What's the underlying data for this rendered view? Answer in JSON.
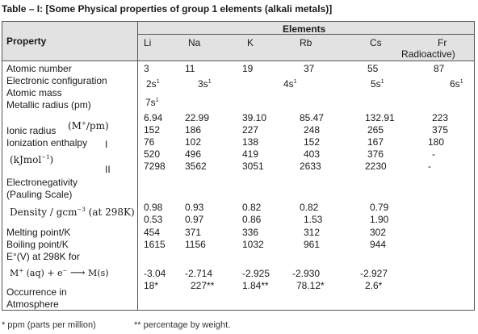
{
  "title": "Table – I: [Some Physical properties of group 1 elements (alkali metals)]",
  "header": {
    "elements_label": "Elements",
    "property_label": "Property",
    "symbols": [
      "Li",
      "Na",
      "K",
      "Rb",
      "Cs",
      "Fr"
    ],
    "fr_note": "Radioactive)"
  },
  "labels": {
    "atomic_number": "Atomic number",
    "electronic_configuration": "Electronic configuration",
    "atomic_mass": "Atomic mass",
    "metallic_radius": "Metallic radius (pm)",
    "ionic_radius": "Ionic radius",
    "ionic_radius_unit": "(M+/pm)",
    "ionization_enthalpy": "Ionization enthalpy",
    "ie_unit": "(kJmol-1)",
    "ie_first": "I",
    "ie_second": "II",
    "electronegativity_1": "Electronegativity",
    "electronegativity_2": "(Pauling Scale)",
    "density": "Density / gcm-3 (at 298K)",
    "melting_point": "Melting point/K",
    "boiling_point": "Boiling point/K",
    "e_potential": "E°(V) at 298K for",
    "e_reaction": "M+ (aq) + e- ⟶ M(s)",
    "occurrence_1": "Occurrence in",
    "occurrence_2": "Atmosphere"
  },
  "values": {
    "atomic_number": [
      "3",
      "11",
      "19",
      "37",
      "55",
      "87"
    ],
    "electronic_configuration": [
      "2s1",
      "3s1",
      "4s1",
      "5s1",
      "6s1"
    ],
    "li_config_extra": "7s1",
    "atomic_mass": [
      "6.94",
      "22.99",
      "39.10",
      "85.47",
      "132.91",
      "223"
    ],
    "metallic_radius": [
      "152",
      "186",
      "227",
      "248",
      "265",
      "375"
    ],
    "ionic_radius": [
      "76",
      "102",
      "138",
      "152",
      "167",
      "180"
    ],
    "ie_1": [
      "520",
      "496",
      "419",
      "403",
      "376",
      "-"
    ],
    "ie_2": [
      "7298",
      "3562",
      "3051",
      "2633",
      "2230",
      "-"
    ],
    "electronegativity": [
      "0.98",
      "0.93",
      "0.82",
      "0.82",
      "0.79"
    ],
    "density": [
      "0.53",
      "0.97",
      "0.86",
      "1.53",
      "1.90"
    ],
    "melting_point": [
      "454",
      "371",
      "336",
      "312",
      "302"
    ],
    "boiling_point": [
      "1615",
      "1156",
      "1032",
      "961",
      "944"
    ],
    "e_potential": [
      "-3.04",
      "-2.714",
      "-2.925",
      "-2.930",
      "-2.927"
    ],
    "occurrence": [
      "18*",
      "227**",
      "1.84**",
      "78.12*",
      "2.6*"
    ]
  },
  "footnotes": {
    "ppm": "* ppm (parts per million)",
    "weight": "** percentage by weight."
  }
}
